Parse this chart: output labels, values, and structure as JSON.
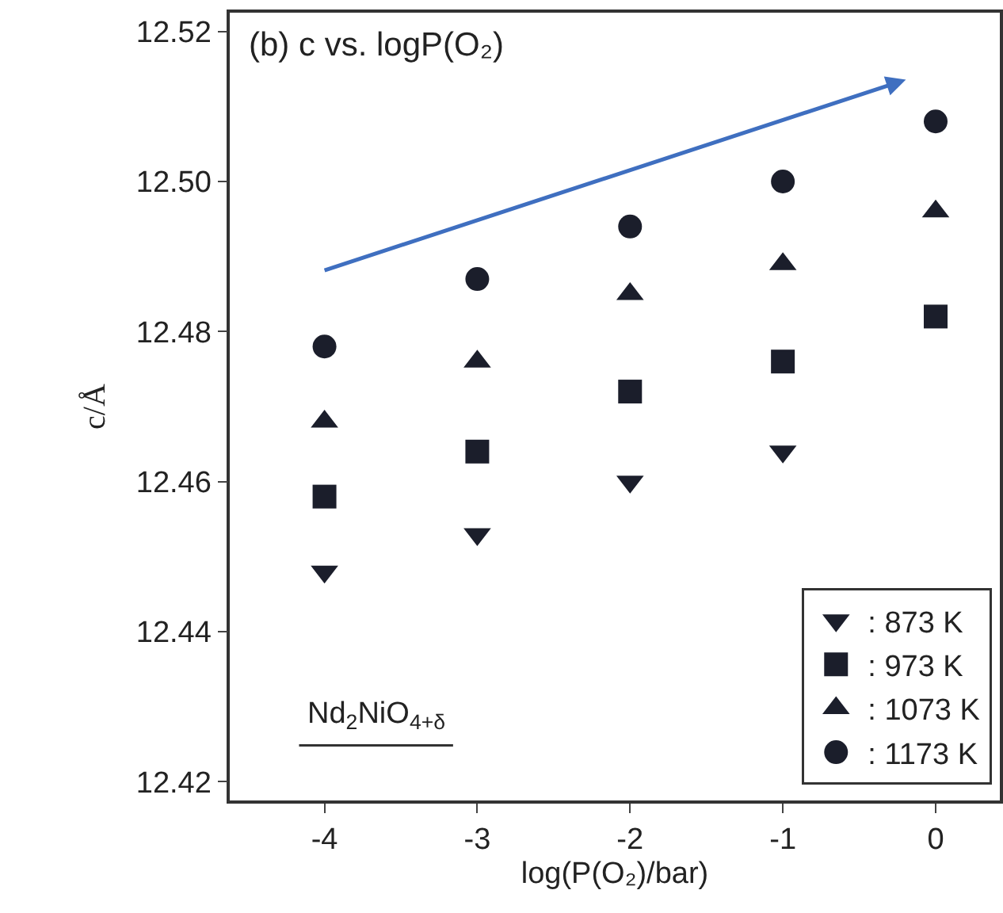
{
  "chart_data": {
    "type": "scatter",
    "title": "(b) c vs. logP(O₂)",
    "xlabel": "log(P(O₂)/bar)",
    "ylabel": "c/Å",
    "x": [
      -4,
      -3,
      -2,
      -1,
      0
    ],
    "series": [
      {
        "name": ": 873 K",
        "color": "#1b1e2b",
        "marker": "triangle-down",
        "values": [
          12.448,
          12.453,
          12.46,
          12.464,
          null
        ]
      },
      {
        "name": ": 973 K",
        "color": "#1b1e2b",
        "marker": "square",
        "values": [
          12.458,
          12.464,
          12.472,
          12.476,
          12.482
        ]
      },
      {
        "name": ": 1073 K",
        "color": "#1b1e2b",
        "marker": "triangle",
        "values": [
          12.468,
          12.476,
          12.485,
          12.489,
          12.496
        ]
      },
      {
        "name": ": 1173 K",
        "color": "#1b1e2b",
        "marker": "circle",
        "values": [
          12.478,
          12.487,
          12.494,
          12.5,
          12.508
        ]
      }
    ],
    "annotations": [
      "Nd$_{2}$NiO$_{4+δ}$"
    ],
    "xlim": [
      -4.62,
      0.42
    ],
    "ylim": [
      12.4175,
      12.5225
    ],
    "xticks": [
      -4,
      -3,
      -2,
      -1,
      0
    ],
    "yticks": [
      12.42,
      12.44,
      12.46,
      12.48,
      {
        "value": 12.5,
        "label": "12.50"
      },
      12.52
    ],
    "grid": false,
    "legend": "bottom right"
  }
}
